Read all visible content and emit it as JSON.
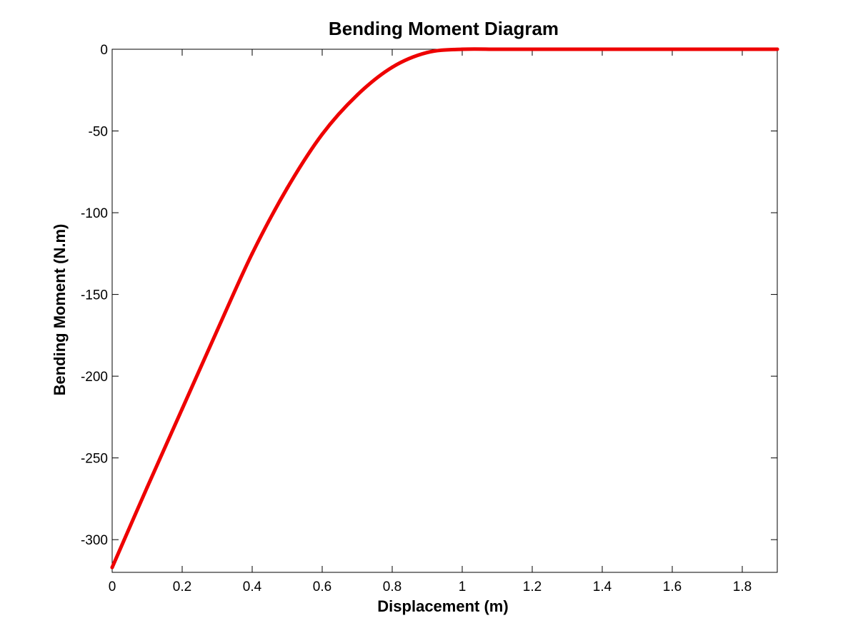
{
  "chart_data": {
    "type": "line",
    "title": "Bending Moment Diagram",
    "xlabel": "Displacement (m)",
    "ylabel": "Bending Moment (N.m)",
    "xlim": [
      0,
      1.9
    ],
    "ylim": [
      -320,
      0
    ],
    "xticks": [
      "0",
      "0.2",
      "0.4",
      "0.6",
      "0.8",
      "1",
      "1.2",
      "1.4",
      "1.6",
      "1.8"
    ],
    "yticks": [
      "0",
      "-50",
      "-100",
      "-150",
      "-200",
      "-250",
      "-300"
    ],
    "xtick_values": [
      0,
      0.2,
      0.4,
      0.6,
      0.8,
      1.0,
      1.2,
      1.4,
      1.6,
      1.8
    ],
    "ytick_values": [
      0,
      -50,
      -100,
      -150,
      -200,
      -250,
      -300
    ],
    "grid": false,
    "series": [
      {
        "color": "#ee0000",
        "x": [
          0,
          0.1,
          0.2,
          0.3,
          0.4,
          0.5,
          0.6,
          0.7,
          0.8,
          0.9,
          1.0,
          1.1,
          1.2,
          1.3,
          1.4,
          1.5,
          1.6,
          1.7,
          1.8,
          1.9
        ],
        "y": [
          -317,
          -268,
          -220,
          -172,
          -125,
          -85,
          -52,
          -28,
          -11,
          -2,
          0,
          0,
          0,
          0,
          0,
          0,
          0,
          0,
          0,
          0
        ]
      }
    ]
  }
}
